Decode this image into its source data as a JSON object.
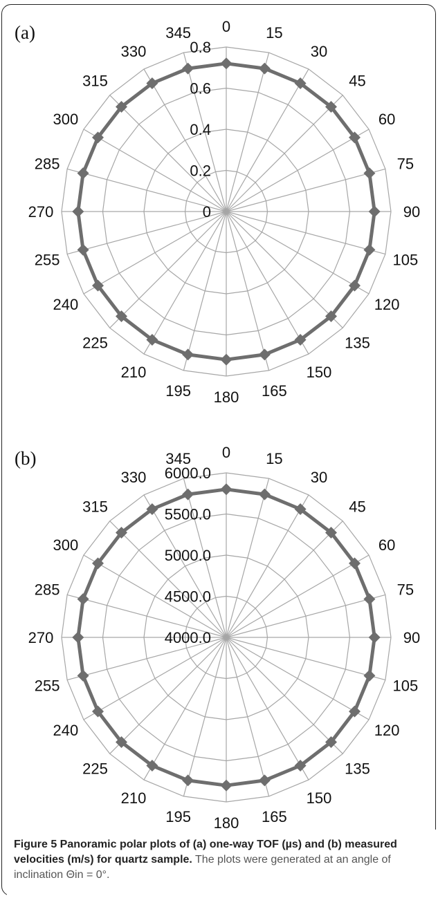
{
  "figure": {
    "caption_bold": "Figure 5 Panoramic polar plots of (a) one-way TOF (µs) and (b) measured velocities (m/s) for quartz sample.",
    "caption_plain": "The plots were generated at an angle of inclination Θin = 0°."
  },
  "chart_data": [
    {
      "type": "radar",
      "panel_label": "(a)",
      "categories": [
        "0",
        "15",
        "30",
        "45",
        "60",
        "75",
        "90",
        "105",
        "120",
        "135",
        "150",
        "165",
        "180",
        "195",
        "210",
        "225",
        "240",
        "255",
        "270",
        "285",
        "300",
        "315",
        "330",
        "345"
      ],
      "radial_ticks": [
        "0",
        "0.2",
        "0.4",
        "0.6",
        "0.8"
      ],
      "rlim": [
        0,
        0.8
      ],
      "series": [
        {
          "values": [
            0.72,
            0.72,
            0.72,
            0.72,
            0.72,
            0.72,
            0.72,
            0.72,
            0.72,
            0.72,
            0.72,
            0.72,
            0.72,
            0.72,
            0.72,
            0.72,
            0.72,
            0.72,
            0.72,
            0.72,
            0.72,
            0.72,
            0.72,
            0.72
          ]
        }
      ],
      "line_color": "#6e6e6e",
      "grid_color": "#a6a6a6"
    },
    {
      "type": "radar",
      "panel_label": "(b)",
      "categories": [
        "0",
        "15",
        "30",
        "45",
        "60",
        "75",
        "90",
        "105",
        "120",
        "135",
        "150",
        "165",
        "180",
        "195",
        "210",
        "225",
        "240",
        "255",
        "270",
        "285",
        "300",
        "315",
        "330",
        "345"
      ],
      "radial_ticks": [
        "4000.0",
        "4500.0",
        "5000.0",
        "5500.0",
        "6000.0"
      ],
      "rlim": [
        4000,
        6000
      ],
      "series": [
        {
          "values": [
            5800,
            5800,
            5800,
            5800,
            5800,
            5800,
            5800,
            5800,
            5800,
            5800,
            5800,
            5800,
            5800,
            5800,
            5800,
            5800,
            5800,
            5800,
            5800,
            5800,
            5800,
            5800,
            5800,
            5800
          ]
        }
      ],
      "line_color": "#6e6e6e",
      "grid_color": "#a6a6a6"
    }
  ]
}
